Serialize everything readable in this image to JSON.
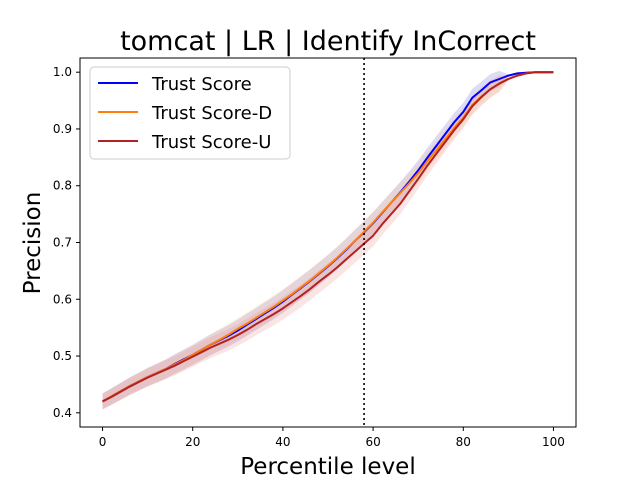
{
  "chart_data": {
    "type": "line",
    "title": "tomcat | LR | Identify InCorrect",
    "xlabel": "Percentile level",
    "ylabel": "Precision",
    "xlim": [
      -5,
      105
    ],
    "ylim": [
      0.375,
      1.025
    ],
    "xticks": [
      0,
      20,
      40,
      60,
      80,
      100
    ],
    "xtick_labels": [
      "0",
      "20",
      "40",
      "60",
      "80",
      "100"
    ],
    "yticks": [
      0.4,
      0.5,
      0.6,
      0.7,
      0.8,
      0.9,
      1.0
    ],
    "ytick_labels": [
      "0.4",
      "0.5",
      "0.6",
      "0.7",
      "0.8",
      "0.9",
      "1.0"
    ],
    "grid": false,
    "legend_position": "top-left",
    "vline": {
      "x": 58,
      "style": "dotted",
      "color": "#000000"
    },
    "x": [
      0,
      2,
      4,
      6,
      8,
      10,
      12,
      14,
      16,
      18,
      20,
      22,
      24,
      26,
      28,
      30,
      32,
      34,
      36,
      38,
      40,
      42,
      44,
      46,
      48,
      50,
      52,
      54,
      56,
      58,
      60,
      62,
      64,
      66,
      68,
      70,
      72,
      74,
      76,
      78,
      80,
      82,
      84,
      86,
      88,
      90,
      92,
      94,
      96,
      98,
      100
    ],
    "series": [
      {
        "name": "Trust Score",
        "color": "#0000ff",
        "band_color": "#6a5acd",
        "values": [
          0.42,
          0.429,
          0.438,
          0.447,
          0.455,
          0.463,
          0.47,
          0.477,
          0.486,
          0.494,
          0.502,
          0.511,
          0.52,
          0.528,
          0.536,
          0.545,
          0.555,
          0.565,
          0.575,
          0.585,
          0.596,
          0.608,
          0.62,
          0.632,
          0.645,
          0.658,
          0.672,
          0.687,
          0.703,
          0.718,
          0.734,
          0.752,
          0.77,
          0.788,
          0.807,
          0.827,
          0.849,
          0.87,
          0.891,
          0.912,
          0.93,
          0.955,
          0.968,
          0.982,
          0.988,
          0.994,
          0.998,
          0.999,
          1.0,
          1.0,
          1.0
        ]
      },
      {
        "name": "Trust Score-D",
        "color": "#ff7f0e",
        "band_color": "#ffbb78",
        "values": [
          0.42,
          0.429,
          0.438,
          0.447,
          0.455,
          0.463,
          0.47,
          0.477,
          0.485,
          0.493,
          0.502,
          0.511,
          0.52,
          0.529,
          0.538,
          0.548,
          0.557,
          0.567,
          0.577,
          0.587,
          0.598,
          0.609,
          0.621,
          0.633,
          0.646,
          0.659,
          0.673,
          0.688,
          0.703,
          0.719,
          0.735,
          0.753,
          0.77,
          0.787,
          0.804,
          0.822,
          0.843,
          0.862,
          0.882,
          0.902,
          0.92,
          0.942,
          0.957,
          0.97,
          0.98,
          0.988,
          0.994,
          0.998,
          1.0,
          1.0,
          1.0
        ]
      },
      {
        "name": "Trust Score-U",
        "color": "#b22222",
        "band_color": "#e88a8a",
        "values": [
          0.42,
          0.428,
          0.437,
          0.446,
          0.454,
          0.462,
          0.469,
          0.476,
          0.483,
          0.491,
          0.499,
          0.507,
          0.515,
          0.522,
          0.529,
          0.537,
          0.546,
          0.556,
          0.565,
          0.574,
          0.584,
          0.595,
          0.606,
          0.618,
          0.631,
          0.643,
          0.656,
          0.67,
          0.684,
          0.698,
          0.712,
          0.732,
          0.75,
          0.768,
          0.79,
          0.812,
          0.835,
          0.856,
          0.877,
          0.898,
          0.917,
          0.94,
          0.956,
          0.97,
          0.98,
          0.988,
          0.994,
          0.998,
          1.0,
          1.0,
          1.0
        ]
      }
    ]
  }
}
